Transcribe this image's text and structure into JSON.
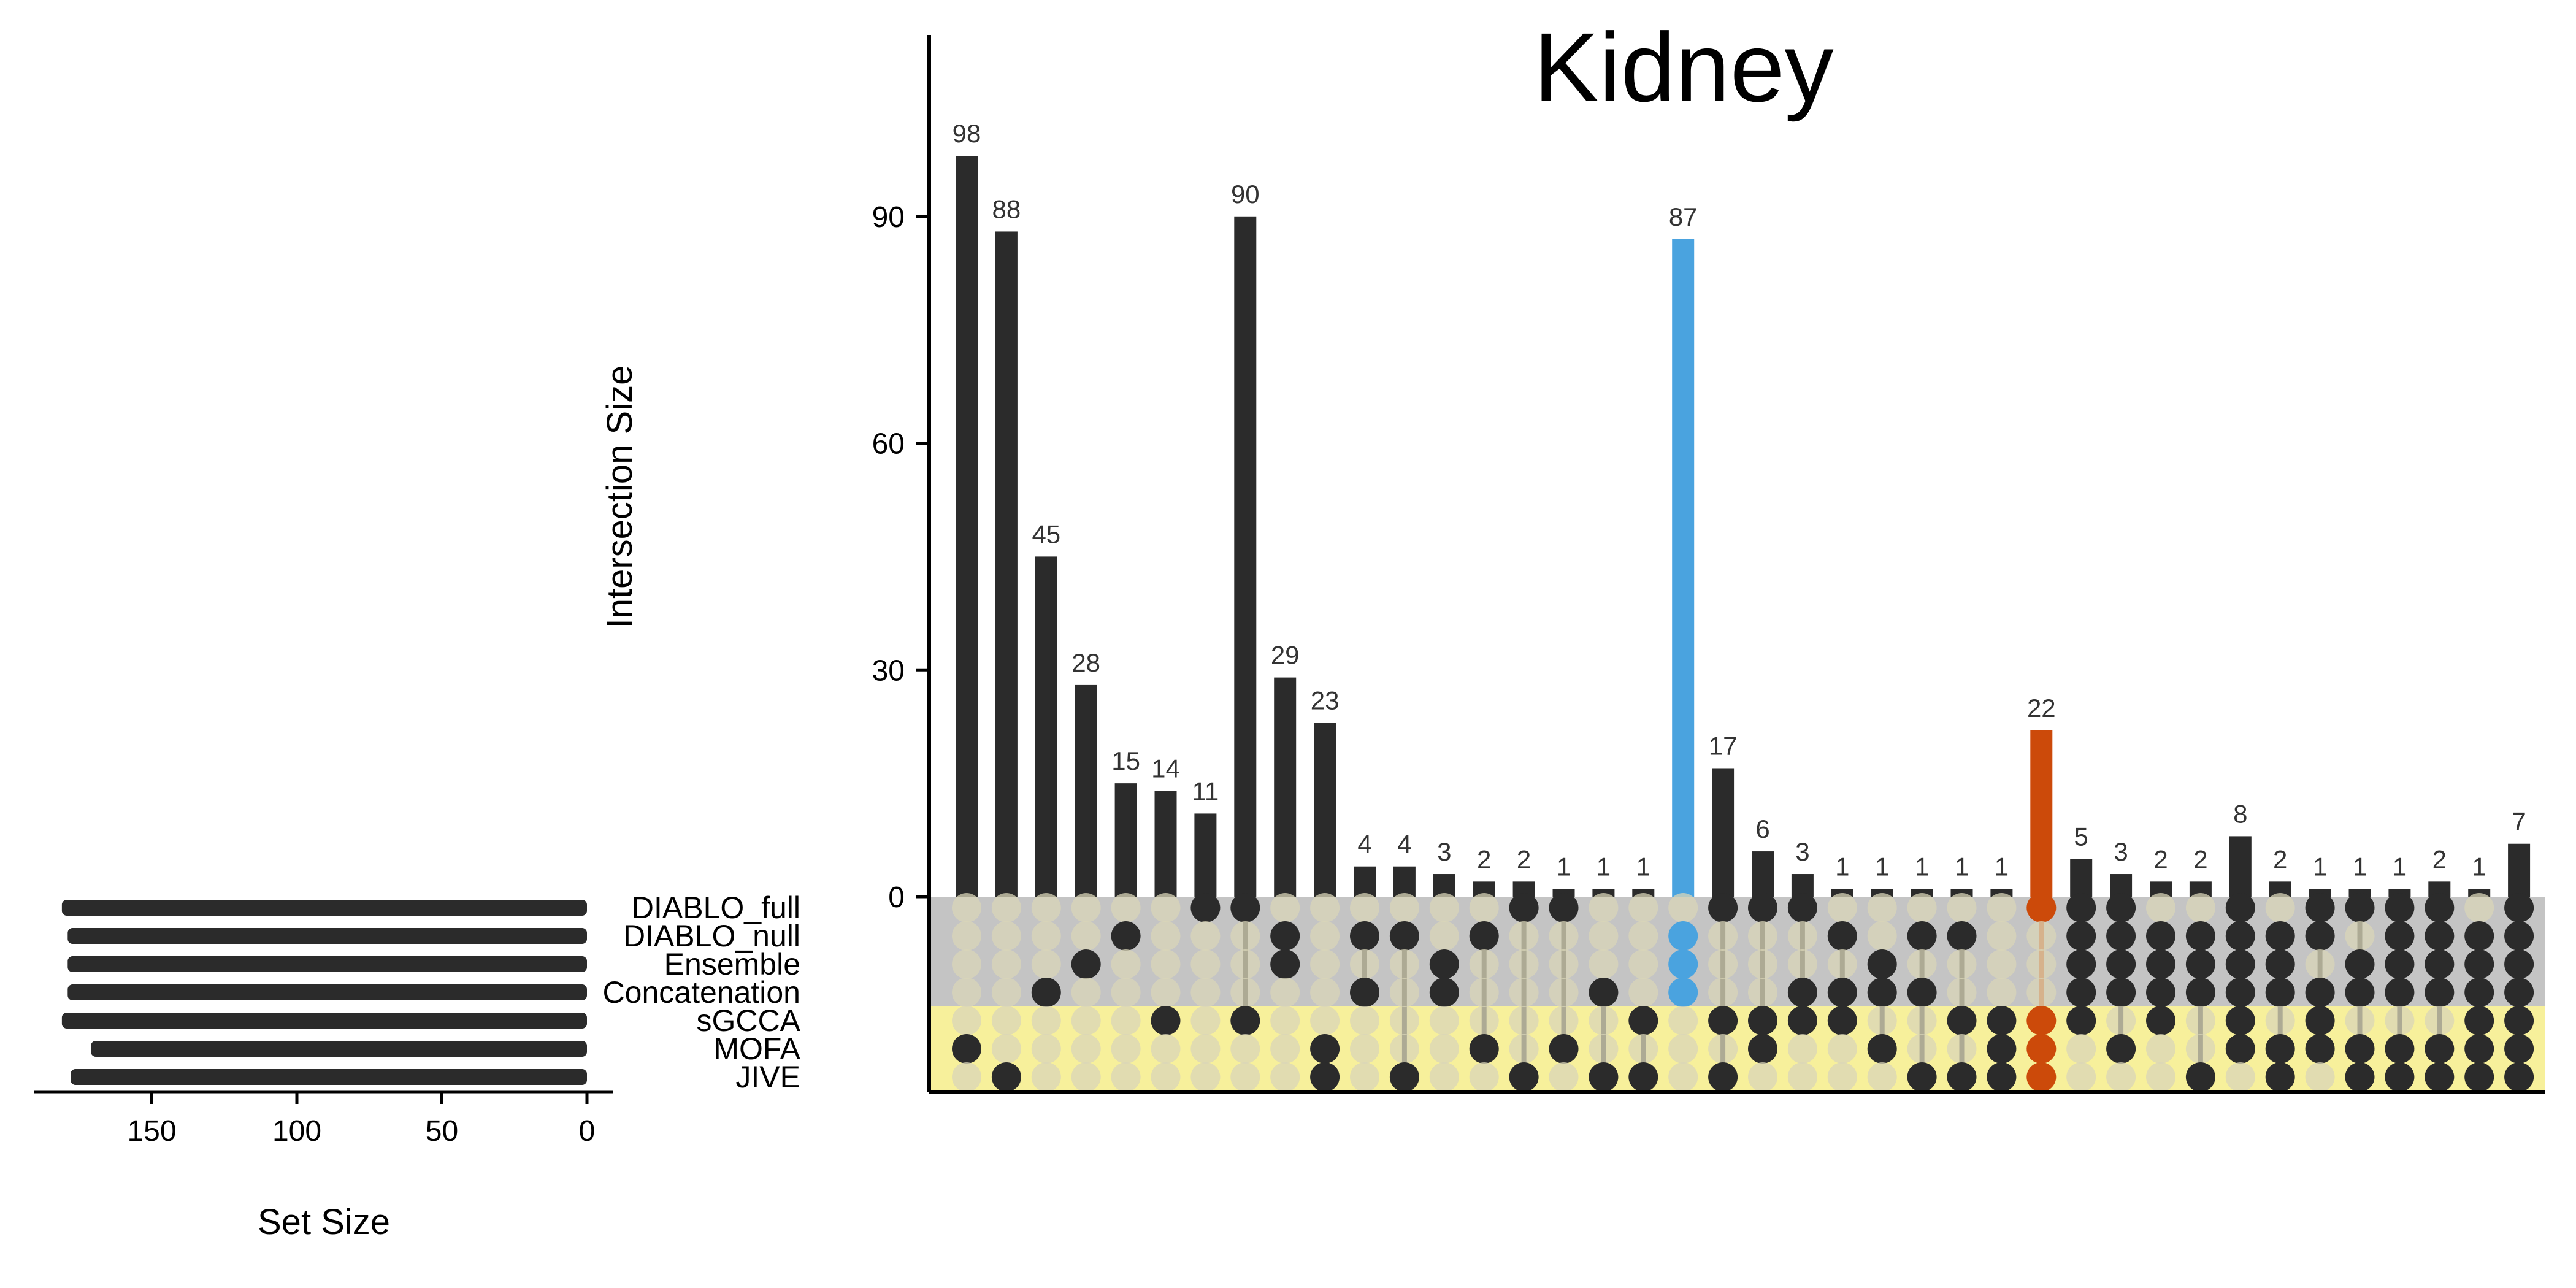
{
  "chart_data": {
    "type": "upset",
    "title": "Kidney",
    "ylabel": "Intersection Size",
    "xlabel": "Set Size",
    "ylim": [
      0,
      114
    ],
    "y_ticks": [
      0,
      30,
      60,
      90
    ],
    "set_size_ticks": [
      150,
      100,
      50,
      0
    ],
    "set_size_xlim": [
      190,
      0
    ],
    "sets": [
      {
        "name": "DIABLO_full",
        "size": 181
      },
      {
        "name": "DIABLO_null",
        "size": 179
      },
      {
        "name": "Ensemble",
        "size": 179
      },
      {
        "name": "Concatenation",
        "size": 179
      },
      {
        "name": "sGCCA",
        "size": 181
      },
      {
        "name": "MOFA",
        "size": 171
      },
      {
        "name": "JIVE",
        "size": 178
      }
    ],
    "intersections": [
      {
        "value": 98,
        "sets": [
          "MOFA"
        ]
      },
      {
        "value": 88,
        "sets": [
          "JIVE"
        ]
      },
      {
        "value": 45,
        "sets": [
          "Concatenation"
        ]
      },
      {
        "value": 28,
        "sets": [
          "Ensemble"
        ]
      },
      {
        "value": 15,
        "sets": [
          "DIABLO_null"
        ]
      },
      {
        "value": 14,
        "sets": [
          "sGCCA"
        ]
      },
      {
        "value": 11,
        "sets": [
          "DIABLO_full"
        ]
      },
      {
        "value": 90,
        "sets": [
          "DIABLO_full",
          "sGCCA"
        ]
      },
      {
        "value": 29,
        "sets": [
          "DIABLO_null",
          "Ensemble"
        ]
      },
      {
        "value": 23,
        "sets": [
          "MOFA",
          "JIVE"
        ]
      },
      {
        "value": 4,
        "sets": [
          "DIABLO_null",
          "Concatenation"
        ]
      },
      {
        "value": 4,
        "sets": [
          "DIABLO_null",
          "JIVE"
        ]
      },
      {
        "value": 3,
        "sets": [
          "Ensemble",
          "Concatenation"
        ]
      },
      {
        "value": 2,
        "sets": [
          "DIABLO_null",
          "MOFA"
        ]
      },
      {
        "value": 2,
        "sets": [
          "DIABLO_full",
          "JIVE"
        ]
      },
      {
        "value": 1,
        "sets": [
          "DIABLO_full",
          "MOFA"
        ]
      },
      {
        "value": 1,
        "sets": [
          "Concatenation",
          "JIVE"
        ]
      },
      {
        "value": 1,
        "sets": [
          "sGCCA",
          "JIVE"
        ]
      },
      {
        "value": 87,
        "sets": [
          "DIABLO_null",
          "Ensemble",
          "Concatenation"
        ],
        "color": "#4aa3df"
      },
      {
        "value": 17,
        "sets": [
          "DIABLO_full",
          "sGCCA",
          "JIVE"
        ]
      },
      {
        "value": 6,
        "sets": [
          "DIABLO_full",
          "sGCCA",
          "MOFA"
        ]
      },
      {
        "value": 3,
        "sets": [
          "DIABLO_full",
          "Concatenation",
          "sGCCA"
        ]
      },
      {
        "value": 1,
        "sets": [
          "DIABLO_null",
          "Concatenation",
          "sGCCA"
        ]
      },
      {
        "value": 1,
        "sets": [
          "Ensemble",
          "Concatenation",
          "MOFA"
        ]
      },
      {
        "value": 1,
        "sets": [
          "DIABLO_null",
          "Concatenation",
          "JIVE"
        ]
      },
      {
        "value": 1,
        "sets": [
          "DIABLO_null",
          "sGCCA",
          "JIVE"
        ]
      },
      {
        "value": 1,
        "sets": [
          "sGCCA",
          "MOFA",
          "JIVE"
        ]
      },
      {
        "value": 22,
        "sets": [
          "DIABLO_full",
          "sGCCA",
          "MOFA",
          "JIVE"
        ],
        "color": "#cc4a0a"
      },
      {
        "value": 5,
        "sets": [
          "DIABLO_full",
          "DIABLO_null",
          "Ensemble",
          "Concatenation",
          "sGCCA"
        ]
      },
      {
        "value": 3,
        "sets": [
          "DIABLO_full",
          "DIABLO_null",
          "Ensemble",
          "Concatenation",
          "MOFA"
        ]
      },
      {
        "value": 2,
        "sets": [
          "DIABLO_null",
          "Ensemble",
          "Concatenation",
          "sGCCA"
        ]
      },
      {
        "value": 2,
        "sets": [
          "DIABLO_null",
          "Ensemble",
          "Concatenation",
          "JIVE"
        ]
      },
      {
        "value": 8,
        "sets": [
          "DIABLO_full",
          "DIABLO_null",
          "Ensemble",
          "Concatenation",
          "sGCCA",
          "MOFA"
        ]
      },
      {
        "value": 2,
        "sets": [
          "DIABLO_null",
          "Ensemble",
          "Concatenation",
          "MOFA",
          "JIVE"
        ]
      },
      {
        "value": 1,
        "sets": [
          "DIABLO_full",
          "DIABLO_null",
          "Concatenation",
          "sGCCA",
          "MOFA"
        ]
      },
      {
        "value": 1,
        "sets": [
          "DIABLO_full",
          "Ensemble",
          "Concatenation",
          "MOFA",
          "JIVE"
        ]
      },
      {
        "value": 1,
        "sets": [
          "DIABLO_full",
          "DIABLO_null",
          "Ensemble",
          "Concatenation",
          "MOFA",
          "JIVE"
        ]
      },
      {
        "value": 2,
        "sets": [
          "DIABLO_full",
          "DIABLO_null",
          "Ensemble",
          "Concatenation",
          "MOFA",
          "JIVE"
        ]
      },
      {
        "value": 1,
        "sets": [
          "DIABLO_null",
          "Ensemble",
          "Concatenation",
          "sGCCA",
          "MOFA",
          "JIVE"
        ]
      },
      {
        "value": 7,
        "sets": [
          "DIABLO_full",
          "DIABLO_null",
          "Ensemble",
          "Concatenation",
          "sGCCA",
          "MOFA",
          "JIVE"
        ]
      }
    ],
    "colors": {
      "bar": "#2b2b2b",
      "highlight_blue": "#4aa3df",
      "highlight_orange": "#cc4a0a",
      "matrix_band_gray": "#c4c4c4",
      "matrix_band_yellow": "#f7f09b",
      "dot_inactive": "#d9d6b8"
    },
    "grid": false
  }
}
